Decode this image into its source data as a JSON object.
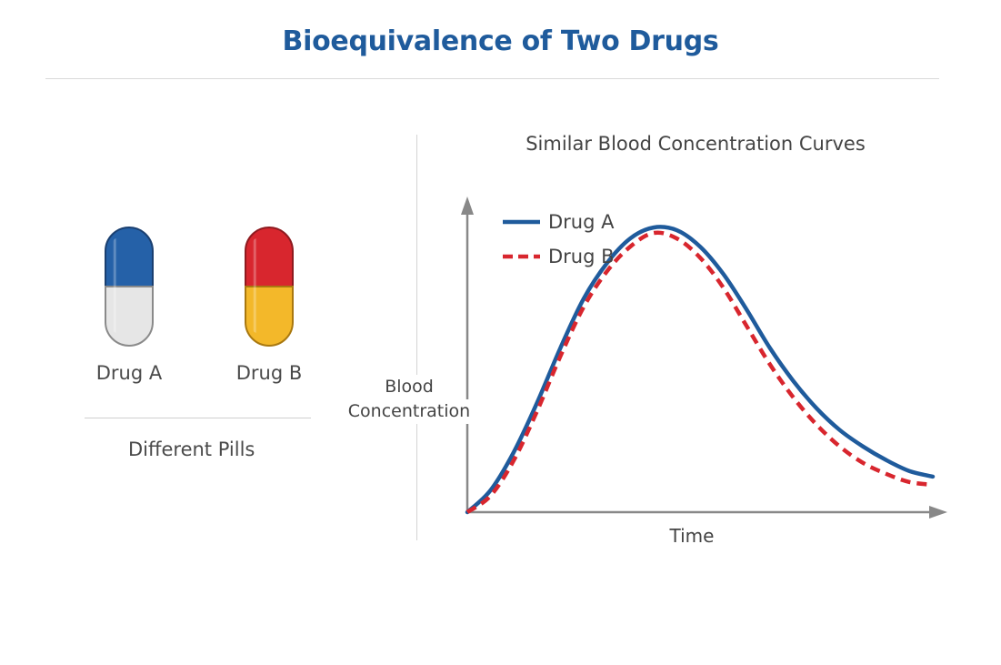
{
  "title": "Bioequivalence of Two Drugs",
  "pills": [
    {
      "name": "Drug A",
      "top_color": "#2561a8",
      "bottom_color": "#e6e6e6"
    },
    {
      "name": "Drug B",
      "top_color": "#d8262e",
      "bottom_color": "#f3b82a"
    }
  ],
  "pills_caption": "Different Pills",
  "chart_data": {
    "type": "line",
    "title": "Similar Blood Concentration Curves",
    "xlabel": "Time",
    "ylabel_lines": [
      "Blood",
      "Concentration"
    ],
    "legend": [
      "Drug A",
      "Drug B"
    ],
    "legend_position": "top-left",
    "xlim": [
      0,
      10
    ],
    "ylim": [
      0,
      1.1
    ],
    "grid": false,
    "series": [
      {
        "name": "Drug A",
        "color": "#1f5b9c",
        "style": "solid",
        "x": [
          0,
          0.5,
          1,
          1.5,
          2,
          2.5,
          3,
          3.5,
          4,
          4.5,
          5,
          5.5,
          6,
          6.5,
          7,
          7.5,
          8,
          8.5,
          9,
          9.5,
          10
        ],
        "y": [
          0,
          0.08,
          0.22,
          0.4,
          0.6,
          0.78,
          0.91,
          1.0,
          1.04,
          1.03,
          0.97,
          0.87,
          0.74,
          0.6,
          0.48,
          0.38,
          0.3,
          0.24,
          0.19,
          0.15,
          0.13
        ]
      },
      {
        "name": "Drug B",
        "color": "#d8262e",
        "style": "dashed",
        "x": [
          0,
          0.5,
          1,
          1.5,
          2,
          2.5,
          3,
          3.5,
          4,
          4.5,
          5,
          5.5,
          6,
          6.5,
          7,
          7.5,
          8,
          8.5,
          9,
          9.5,
          10
        ],
        "y": [
          0,
          0.06,
          0.19,
          0.37,
          0.57,
          0.75,
          0.88,
          0.97,
          1.02,
          1.0,
          0.93,
          0.82,
          0.68,
          0.54,
          0.42,
          0.32,
          0.24,
          0.18,
          0.14,
          0.11,
          0.1
        ]
      }
    ]
  }
}
